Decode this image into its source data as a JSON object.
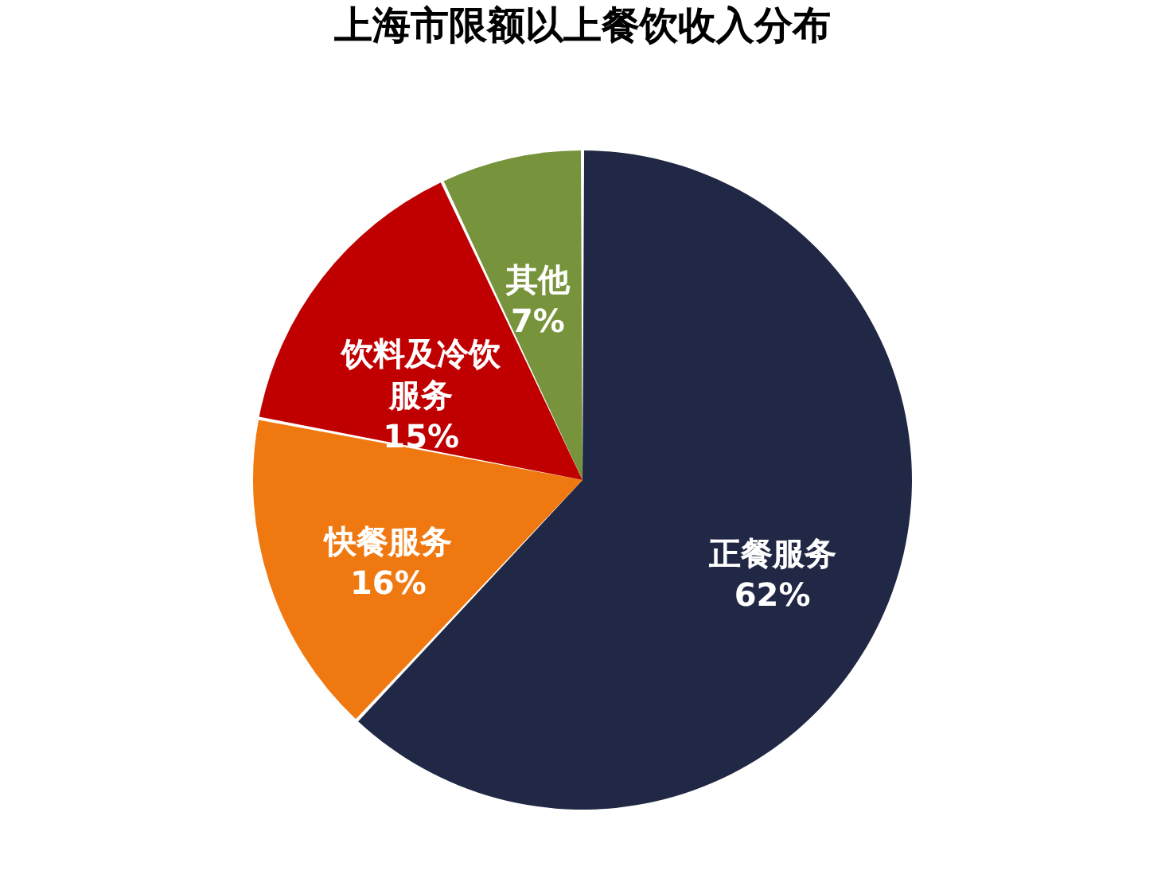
{
  "chart_data": {
    "type": "pie",
    "title": "上海市限额以上餐饮收入分布",
    "categories": [
      "正餐服务",
      "快餐服务",
      "饮料及冷饮服务",
      "其他"
    ],
    "values": [
      62,
      16,
      15,
      7
    ],
    "value_labels": [
      "62%",
      "16%",
      "15%",
      "7%"
    ],
    "colors": [
      "#212845",
      "#f07810",
      "#c00000",
      "#77933c"
    ],
    "legend": false
  }
}
